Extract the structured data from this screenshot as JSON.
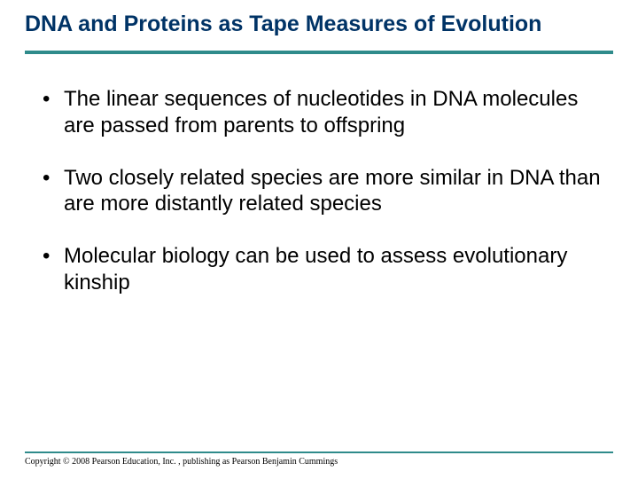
{
  "slide": {
    "title": "DNA and Proteins as Tape Measures of Evolution",
    "title_color": "#003366",
    "title_fontsize": 25,
    "title_fontweight": "bold",
    "bullets": [
      "The linear sequences of nucleotides in DNA molecules are passed from parents to offspring",
      "Two closely related species are more similar in DNA than are more distantly related species",
      "Molecular biology can be used to assess evolutionary kinship"
    ],
    "body_fontsize": 24,
    "body_color": "#000000",
    "rule_color": "#2f8b8b",
    "rule_top_height": 4,
    "rule_bottom_height": 2,
    "background_color": "#ffffff",
    "copyright": "Copyright © 2008 Pearson Education, Inc. , publishing as Pearson Benjamin Cummings",
    "copyright_fontsize": 10
  }
}
